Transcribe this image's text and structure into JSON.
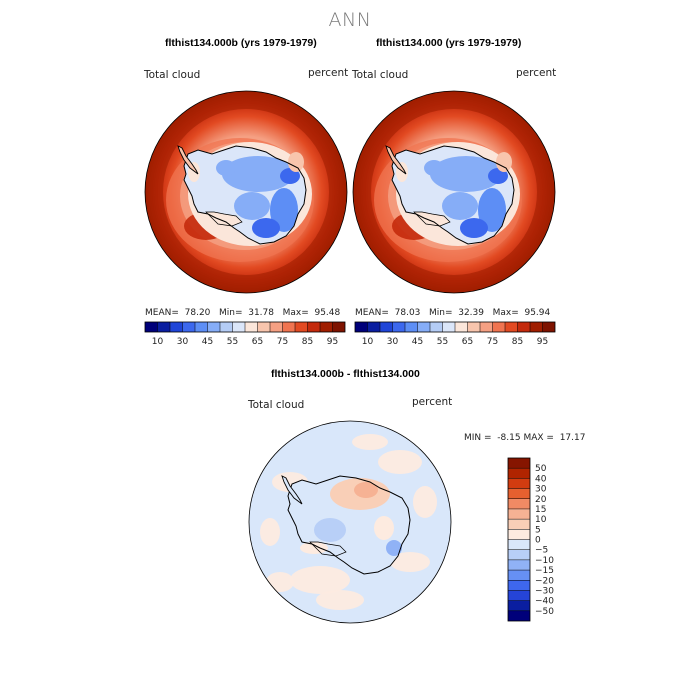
{
  "figure_title": "ANN",
  "colors": {
    "abs_scale": [
      "#00007a",
      "#0a1ea0",
      "#1f45d8",
      "#3c68ee",
      "#5d8ef5",
      "#86adf7",
      "#b4ccf5",
      "#dbe6f9",
      "#fbe6da",
      "#f8c5ad",
      "#f5a083",
      "#f07450",
      "#e24a22",
      "#c42a0c",
      "#a01e00",
      "#7e1300"
    ],
    "diff_scale": [
      "#00007a",
      "#0a1ea0",
      "#2544d8",
      "#3e67ee",
      "#6690f4",
      "#90b2f6",
      "#b8cff7",
      "#d9e7fa",
      "#fdebe0",
      "#f9cfb7",
      "#f6b294",
      "#f08a64",
      "#e6602f",
      "#d23c10",
      "#b02400",
      "#861500"
    ],
    "antarctica_outline": "#000000"
  },
  "chart_data": [
    {
      "type": "polar_map",
      "title": "flthist134.000b (yrs 1979-1979)",
      "left_label": "Total cloud",
      "right_label": "percent",
      "stats": {
        "mean_label": "MEAN=",
        "mean": "78.20",
        "min_label": "Min=",
        "min": "31.78",
        "max_label": "Max=",
        "max": "95.48"
      },
      "colorbar_ticks": [
        "10",
        "30",
        "45",
        "55",
        "65",
        "75",
        "85",
        "95"
      ]
    },
    {
      "type": "polar_map",
      "title": "flthist134.000 (yrs 1979-1979)",
      "left_label": "Total cloud",
      "right_label": "percent",
      "stats": {
        "mean_label": "MEAN=",
        "mean": "78.03",
        "min_label": "Min=",
        "min": "32.39",
        "max_label": "Max=",
        "max": "95.94"
      },
      "colorbar_ticks": [
        "10",
        "30",
        "45",
        "55",
        "65",
        "75",
        "85",
        "95"
      ]
    },
    {
      "type": "polar_map_difference",
      "title": "flthist134.000b - flthist134.000",
      "left_label": "Total cloud",
      "right_label": "percent",
      "stats": {
        "min_label": "MIN =",
        "min": "-8.15",
        "max_label": "MAX =",
        "max": "17.17"
      },
      "colorbar_ticks": [
        "50",
        "40",
        "30",
        "20",
        "15",
        "10",
        "5",
        "0",
        "−5",
        "−10",
        "−15",
        "−20",
        "−30",
        "−40",
        "−50"
      ]
    }
  ]
}
